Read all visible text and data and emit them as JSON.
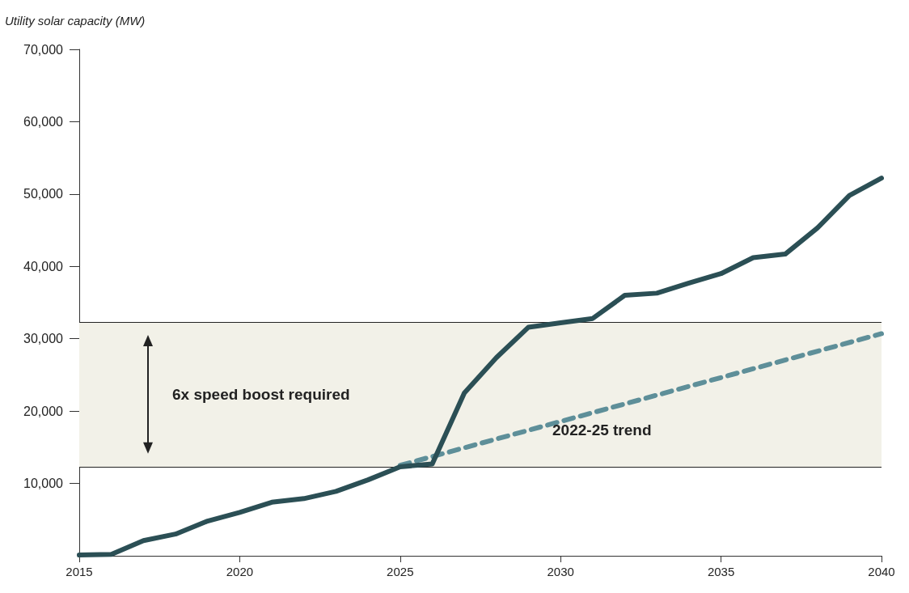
{
  "chart_data": {
    "type": "line",
    "ylabel": "Utility solar capacity (MW)",
    "xlim": [
      2015,
      2040
    ],
    "xticks": [
      2015,
      2020,
      2025,
      2030,
      2035,
      2040
    ],
    "ylim": [
      0,
      70000
    ],
    "yticks": [
      {
        "value": 10000,
        "label": "10,000"
      },
      {
        "value": 20000,
        "label": "20,000"
      },
      {
        "value": 30000,
        "label": "30,000"
      },
      {
        "value": 40000,
        "label": "40,000"
      },
      {
        "value": 50000,
        "label": "50,000"
      },
      {
        "value": 60000,
        "label": "60,000"
      },
      {
        "value": 70000,
        "label": "70,000"
      }
    ],
    "ref_lines": [
      {
        "axis": "y",
        "value": 12300,
        "color": "#222222",
        "line_style": "solid"
      },
      {
        "axis": "y",
        "value": 32300,
        "color": "#222222",
        "line_style": "solid"
      }
    ],
    "grid": false,
    "legend": false,
    "marker": "none",
    "series": [
      {
        "color": "#2b4f55",
        "line_style": "solid",
        "x": [
          2015,
          2016,
          2017,
          2018,
          2019,
          2020,
          2021,
          2022,
          2023,
          2024,
          2025,
          2026,
          2027,
          2028,
          2029,
          2030,
          2031,
          2032,
          2033,
          2034,
          2035,
          2036,
          2037,
          2038,
          2039,
          2040
        ],
        "values": [
          100,
          200,
          2100,
          3000,
          4800,
          6000,
          7400,
          7900,
          8900,
          10500,
          12300,
          12700,
          22500,
          27400,
          31600,
          32200,
          32800,
          36000,
          36300,
          37700,
          39000,
          41200,
          41700,
          45300,
          49800,
          52200
        ]
      },
      {
        "name": "2022-25 trend",
        "color": "#5e8f99",
        "line_style": "dashed",
        "x": [
          2025,
          2040
        ],
        "values": [
          12500,
          30700
        ]
      }
    ],
    "bands": [
      {
        "axis": "y",
        "from": 12300,
        "to": 32300,
        "label": "6x speed boost required",
        "color": "#f2f1e8"
      }
    ]
  }
}
